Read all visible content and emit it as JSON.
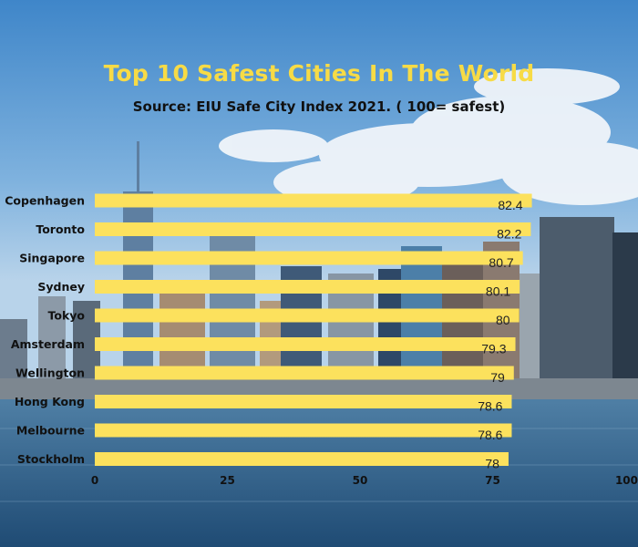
{
  "colors": {
    "bar": "#fce15d",
    "title": "#f7db46",
    "text": "#111111"
  },
  "chart_data": {
    "type": "bar",
    "orientation": "horizontal",
    "title": "Top 10 Safest Cities In The World",
    "subtitle": "Source: EIU Safe City Index 2021. ( 100= safest)",
    "categories": [
      "Copenhagen",
      "Toronto",
      "Singapore",
      "Sydney",
      "Tokyo",
      "Amsterdam",
      "Wellington",
      "Hong Kong",
      "Melbourne",
      "Stockholm"
    ],
    "values": [
      82.4,
      82.2,
      80.7,
      80.1,
      80,
      79.3,
      79,
      78.6,
      78.6,
      78
    ],
    "value_labels": [
      "82.4",
      "82.2",
      "80.7",
      "80.1",
      "80",
      "79.3",
      "79",
      "78.6",
      "78.6",
      "78"
    ],
    "xlim": [
      0,
      100
    ],
    "xticks": [
      0,
      25,
      50,
      75,
      100
    ],
    "xtick_labels": [
      "0",
      "25",
      "50",
      "75",
      "100"
    ],
    "grid": false,
    "legend": "none"
  }
}
